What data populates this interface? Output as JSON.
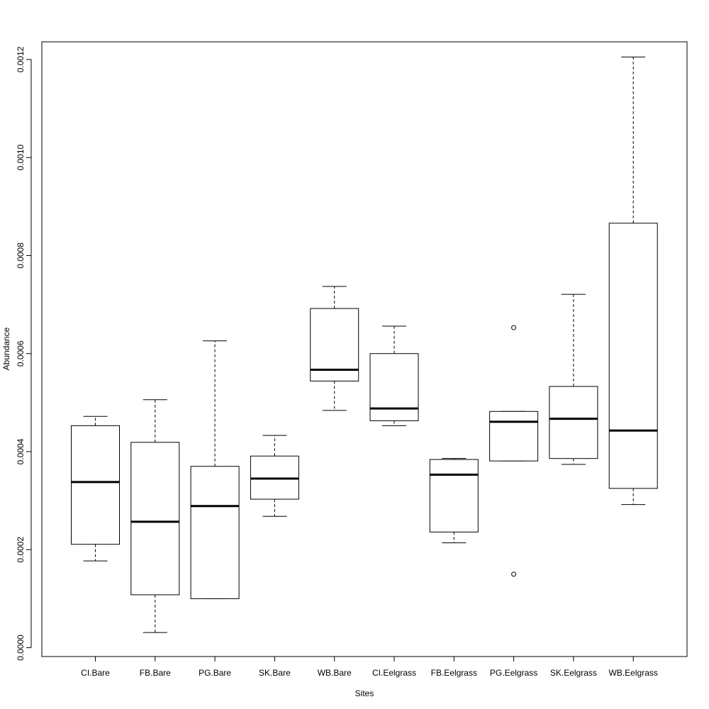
{
  "chart_data": {
    "type": "box",
    "title": "",
    "xlabel": "Sites",
    "ylabel": "Abundance",
    "ylim": [
      -1.8e-05,
      0.001236
    ],
    "yticks": [
      {
        "value": 0.0,
        "label": "0.0000"
      },
      {
        "value": 0.0002,
        "label": "0.0002"
      },
      {
        "value": 0.0004,
        "label": "0.0004"
      },
      {
        "value": 0.0006,
        "label": "0.0006"
      },
      {
        "value": 0.0008,
        "label": "0.0008"
      },
      {
        "value": 0.001,
        "label": "0.0010"
      },
      {
        "value": 0.0012,
        "label": "0.0012"
      }
    ],
    "categories": [
      "CI.Bare",
      "FB.Bare",
      "PG.Bare",
      "SK.Bare",
      "WB.Bare",
      "CI.Eelgrass",
      "FB.Eelgrass",
      "PG.Eelgrass",
      "SK.Eelgrass",
      "WB.Eelgrass"
    ],
    "boxes": [
      {
        "category": "CI.Bare",
        "whisker_low": 0.000177,
        "q1": 0.000211,
        "median": 0.000338,
        "q3": 0.000453,
        "whisker_high": 0.000472,
        "outliers": []
      },
      {
        "category": "FB.Bare",
        "whisker_low": 3.1e-05,
        "q1": 0.000108,
        "median": 0.000257,
        "q3": 0.000419,
        "whisker_high": 0.000506,
        "outliers": []
      },
      {
        "category": "PG.Bare",
        "whisker_low": 0.0001,
        "q1": 0.0001,
        "median": 0.000289,
        "q3": 0.00037,
        "whisker_high": 0.000626,
        "outliers": []
      },
      {
        "category": "SK.Bare",
        "whisker_low": 0.000268,
        "q1": 0.000303,
        "median": 0.000345,
        "q3": 0.000391,
        "whisker_high": 0.000433,
        "outliers": []
      },
      {
        "category": "WB.Bare",
        "whisker_low": 0.000484,
        "q1": 0.000544,
        "median": 0.000567,
        "q3": 0.000692,
        "whisker_high": 0.000737,
        "outliers": []
      },
      {
        "category": "CI.Eelgrass",
        "whisker_low": 0.000453,
        "q1": 0.000463,
        "median": 0.000488,
        "q3": 0.0006,
        "whisker_high": 0.000656,
        "outliers": []
      },
      {
        "category": "FB.Eelgrass",
        "whisker_low": 0.000214,
        "q1": 0.000236,
        "median": 0.000353,
        "q3": 0.000384,
        "whisker_high": 0.000386,
        "outliers": []
      },
      {
        "category": "PG.Eelgrass",
        "whisker_low": 0.000381,
        "q1": 0.000381,
        "median": 0.000461,
        "q3": 0.000482,
        "whisker_high": 0.000482,
        "outliers": [
          0.000653,
          0.00015
        ]
      },
      {
        "category": "SK.Eelgrass",
        "whisker_low": 0.000374,
        "q1": 0.000386,
        "median": 0.000467,
        "q3": 0.000533,
        "whisker_high": 0.000721,
        "outliers": []
      },
      {
        "category": "WB.Eelgrass",
        "whisker_low": 0.000292,
        "q1": 0.000325,
        "median": 0.000443,
        "q3": 0.000866,
        "whisker_high": 0.001205,
        "outliers": []
      }
    ],
    "grid": false,
    "legend": "none",
    "colors": {
      "box_fill": "#ffffff",
      "stroke": "#000000",
      "background": "#ffffff"
    }
  }
}
